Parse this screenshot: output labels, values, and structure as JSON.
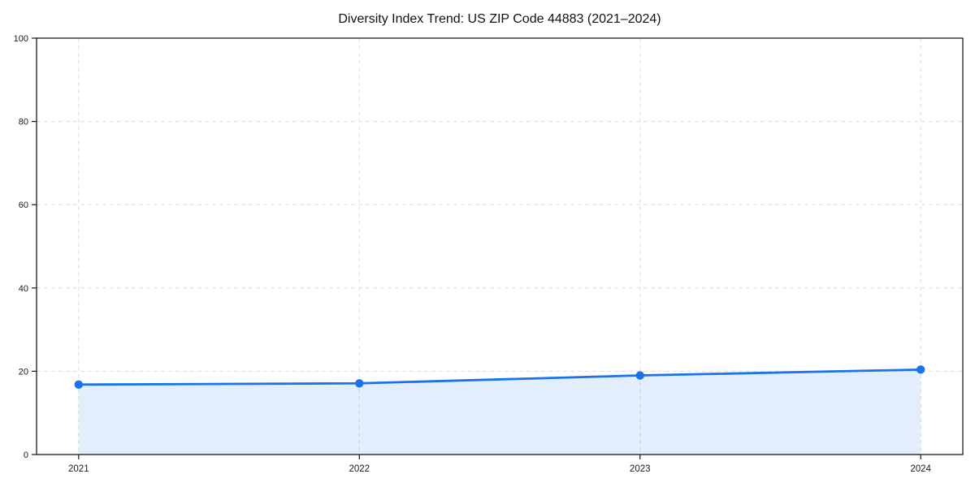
{
  "page": {
    "background": "#ffffff"
  },
  "chart_data": {
    "type": "area",
    "title": "Diversity Index Trend: US ZIP Code 44883 (2021–2024)",
    "x": [
      "2021",
      "2022",
      "2023",
      "2024"
    ],
    "series": [
      {
        "name": "Diversity Index",
        "values": [
          16.8,
          17.1,
          19.0,
          20.4
        ]
      }
    ],
    "xlabel": "",
    "ylabel": "",
    "ylim": [
      0,
      100
    ],
    "yticks": [
      0,
      20,
      40,
      60,
      80,
      100
    ],
    "grid": "dashed",
    "legend_position": "none",
    "colors": {
      "line": "#1a73e8",
      "marker": "#1a73e8",
      "area": "rgba(26,115,232,0.12)",
      "grid": "#dedede",
      "axis": "#1a1a1a",
      "tick_label": "#1a1a1a",
      "title": "#111111",
      "background": "#ffffff"
    }
  }
}
